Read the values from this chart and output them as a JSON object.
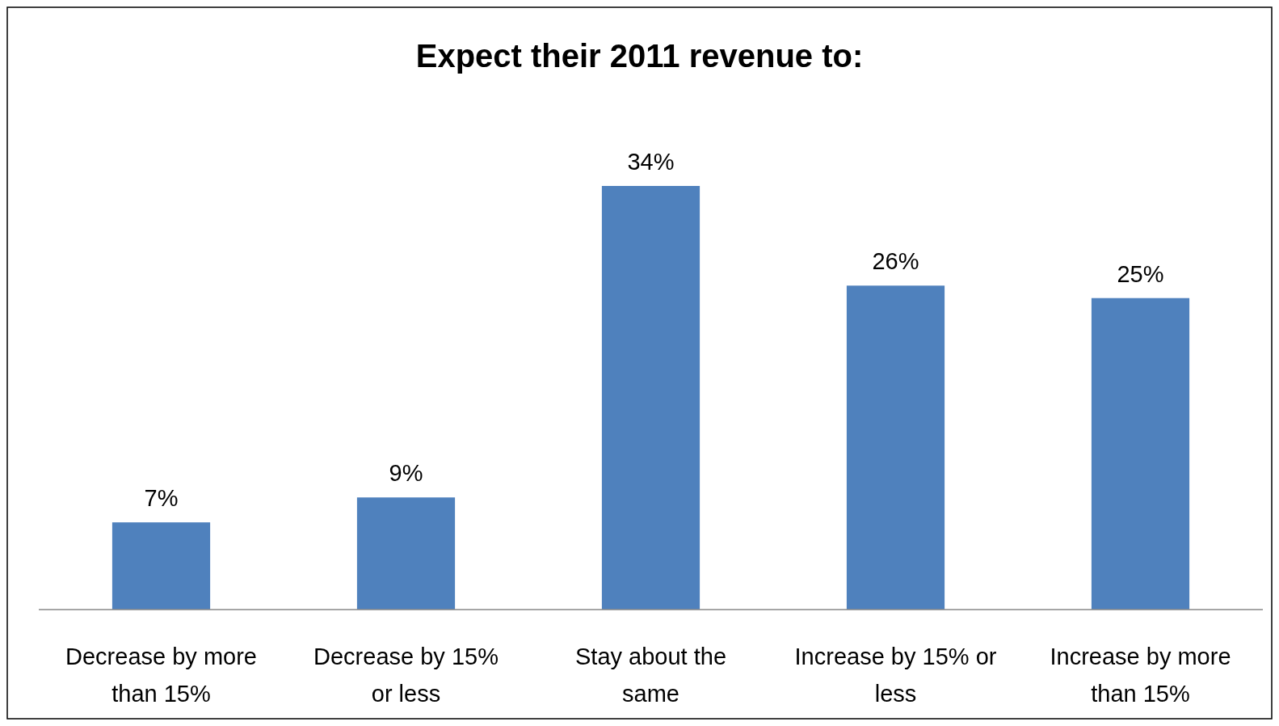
{
  "chart_data": {
    "type": "bar",
    "title": "Expect their 2011 revenue to:",
    "categories": [
      "Decrease by more than 15%",
      "Decrease by 15% or less",
      "Stay about the same",
      "Increase by 15% or less",
      "Increase by more than 15%"
    ],
    "values": [
      7,
      9,
      34,
      26,
      25
    ],
    "value_labels": [
      "7%",
      "9%",
      "34%",
      "26%",
      "25%"
    ],
    "color": "#4f81bd"
  }
}
